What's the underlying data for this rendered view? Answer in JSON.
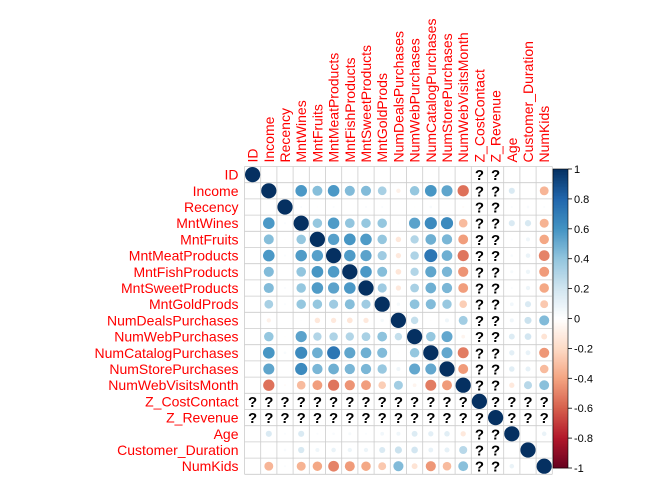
{
  "chart_data": {
    "type": "heatmap",
    "subtype": "correlation-circles",
    "variables": [
      "ID",
      "Income",
      "Recency",
      "MntWines",
      "MntFruits",
      "MntMeatProducts",
      "MntFishProducts",
      "MntSweetProducts",
      "MntGoldProds",
      "NumDealsPurchases",
      "NumWebPurchases",
      "NumCatalogPurchases",
      "NumStorePurchases",
      "NumWebVisitsMonth",
      "Z_CostContact",
      "Z_Revenue",
      "Age",
      "Customer_Duration",
      "NumKids"
    ],
    "na_symbol": "?",
    "label_color": "#ff0000",
    "colorbar": {
      "range": [
        -1,
        1
      ],
      "ticks": [
        "1",
        "0.8",
        "0.6",
        "0.4",
        "0.2",
        "0",
        "-0.2",
        "-0.4",
        "-0.6",
        "-0.8",
        "-1"
      ],
      "colors": [
        "#67001F",
        "#B2182B",
        "#D6604D",
        "#F4A582",
        "#FDDBC7",
        "#FFFFFF",
        "#D1E5F0",
        "#92C5DE",
        "#4393C3",
        "#2166AC",
        "#053061"
      ]
    },
    "matrix": [
      [
        1,
        0,
        0,
        0,
        0,
        0,
        0,
        0,
        0,
        0,
        0,
        0,
        0,
        0,
        null,
        null,
        0,
        0,
        0
      ],
      [
        0,
        1,
        0,
        0.58,
        0.43,
        0.58,
        0.44,
        0.44,
        0.33,
        -0.08,
        0.39,
        0.59,
        0.53,
        -0.55,
        null,
        null,
        0.16,
        0,
        -0.34
      ],
      [
        0,
        0,
        1,
        0.02,
        -0.01,
        0.02,
        0,
        0.02,
        0.02,
        0,
        -0.01,
        0.03,
        0,
        -0.02,
        null,
        null,
        0.02,
        0.03,
        0.02
      ],
      [
        0,
        0.58,
        0.02,
        1,
        0.39,
        0.57,
        0.4,
        0.39,
        0.39,
        0.01,
        0.54,
        0.64,
        0.64,
        -0.32,
        null,
        null,
        0.16,
        0.17,
        -0.35
      ],
      [
        0,
        0.43,
        -0.01,
        0.39,
        1,
        0.55,
        0.59,
        0.57,
        0.39,
        -0.13,
        0.3,
        0.49,
        0.46,
        -0.42,
        null,
        null,
        0.02,
        0.07,
        -0.39
      ],
      [
        0,
        0.58,
        0.02,
        0.57,
        0.55,
        1,
        0.57,
        0.54,
        0.36,
        -0.12,
        0.31,
        0.73,
        0.49,
        -0.54,
        null,
        null,
        0.03,
        0.09,
        -0.5
      ],
      [
        0,
        0.44,
        0,
        0.4,
        0.59,
        0.57,
        1,
        0.58,
        0.43,
        -0.14,
        0.3,
        0.53,
        0.46,
        -0.45,
        null,
        null,
        0.04,
        0.08,
        -0.43
      ],
      [
        0,
        0.44,
        0.02,
        0.39,
        0.57,
        0.54,
        0.58,
        1,
        0.36,
        -0.12,
        0.33,
        0.49,
        0.46,
        -0.42,
        null,
        null,
        0.02,
        0.08,
        -0.39
      ],
      [
        0,
        0.33,
        0.02,
        0.39,
        0.39,
        0.36,
        0.43,
        0.36,
        1,
        0.05,
        0.41,
        0.44,
        0.38,
        -0.25,
        null,
        null,
        0.06,
        0.16,
        -0.27
      ],
      [
        0,
        -0.08,
        0,
        0.01,
        -0.13,
        -0.12,
        -0.14,
        -0.12,
        0.05,
        1,
        0.24,
        -0.01,
        0.07,
        0.35,
        null,
        null,
        0.07,
        0.22,
        0.44
      ],
      [
        0,
        0.39,
        -0.01,
        0.54,
        0.3,
        0.31,
        0.3,
        0.33,
        0.41,
        0.24,
        1,
        0.39,
        0.52,
        -0.06,
        null,
        null,
        0.15,
        0.19,
        -0.15
      ],
      [
        0,
        0.59,
        0.03,
        0.64,
        0.49,
        0.73,
        0.53,
        0.49,
        0.44,
        -0.01,
        0.39,
        1,
        0.52,
        -0.52,
        null,
        null,
        0.12,
        0.1,
        -0.44
      ],
      [
        0,
        0.53,
        0,
        0.64,
        0.46,
        0.49,
        0.46,
        0.46,
        0.38,
        0.07,
        0.52,
        0.52,
        1,
        -0.43,
        null,
        null,
        0.13,
        0.11,
        -0.32
      ],
      [
        0,
        -0.55,
        -0.02,
        -0.32,
        -0.42,
        -0.54,
        -0.45,
        -0.42,
        -0.25,
        0.35,
        -0.06,
        -0.52,
        -0.43,
        1,
        null,
        null,
        -0.12,
        0.28,
        0.42
      ],
      [
        null,
        null,
        null,
        null,
        null,
        null,
        null,
        null,
        null,
        null,
        null,
        null,
        null,
        null,
        1,
        null,
        null,
        null,
        null
      ],
      [
        null,
        null,
        null,
        null,
        null,
        null,
        null,
        null,
        null,
        null,
        null,
        null,
        null,
        null,
        null,
        1,
        null,
        null,
        null
      ],
      [
        0,
        0.16,
        0.02,
        0.16,
        0.02,
        0.03,
        0.04,
        0.02,
        0.06,
        0.07,
        0.15,
        0.12,
        0.13,
        -0.12,
        null,
        null,
        1,
        0,
        0.09
      ],
      [
        0,
        0,
        0.03,
        0.17,
        0.07,
        0.09,
        0.08,
        0.08,
        0.16,
        0.22,
        0.19,
        0.1,
        0.11,
        0.28,
        null,
        null,
        0,
        1,
        0
      ],
      [
        0,
        -0.34,
        0.02,
        -0.35,
        -0.39,
        -0.5,
        -0.43,
        -0.39,
        -0.27,
        0.44,
        -0.15,
        -0.44,
        -0.32,
        0.42,
        null,
        null,
        0.09,
        0,
        1
      ]
    ]
  }
}
